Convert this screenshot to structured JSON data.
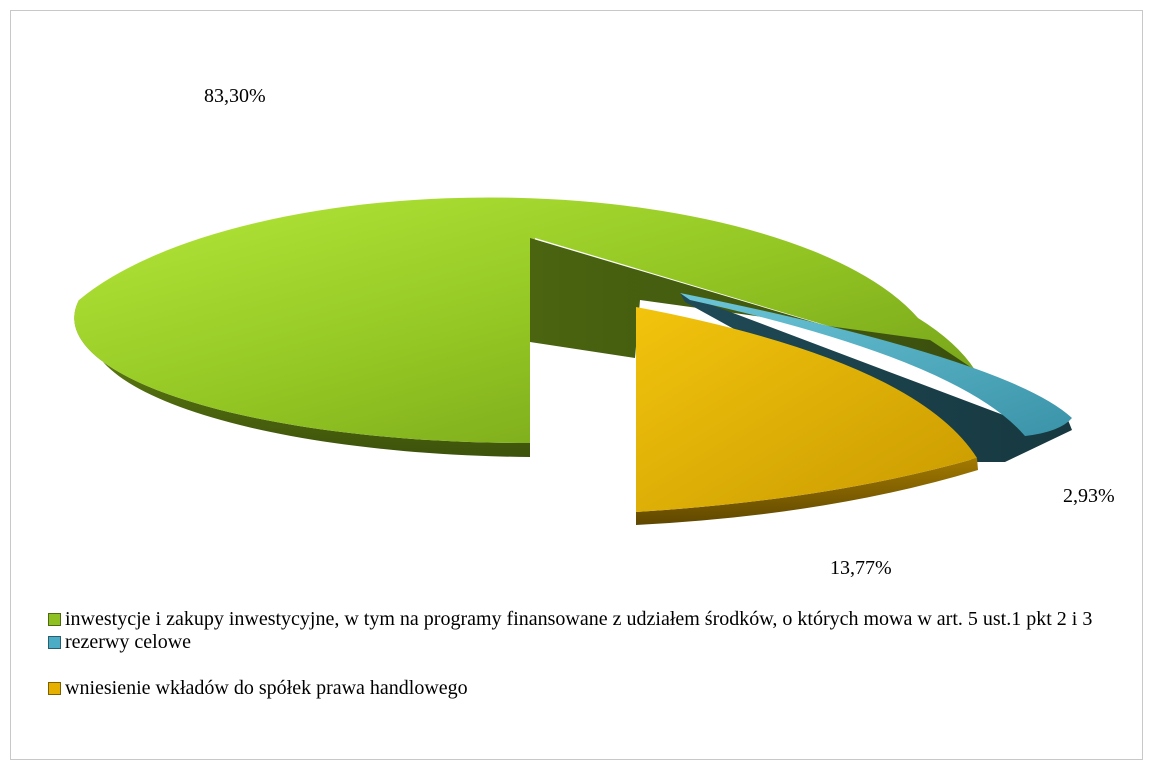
{
  "chart_data": {
    "type": "pie",
    "title": "",
    "slices": [
      {
        "label": "inwestycje i zakupy inwestycyjne, w tym na programy finansowane z udziałem środków, o których mowa w art. 5 ust.1 pkt 2 i 3",
        "value": 83.3,
        "data_label": "83,30%",
        "color": "#8fc021",
        "exploded": false
      },
      {
        "label": "rezerwy celowe",
        "value": 2.93,
        "data_label": "2,93%",
        "color": "#4bacc6",
        "exploded": true
      },
      {
        "label": "wniesienie wkładów do spółek prawa handlowego",
        "value": 13.77,
        "data_label": "13,77%",
        "color": "#e6b000",
        "exploded": true
      }
    ],
    "legend_position": "bottom",
    "style": "3d-exploded"
  }
}
